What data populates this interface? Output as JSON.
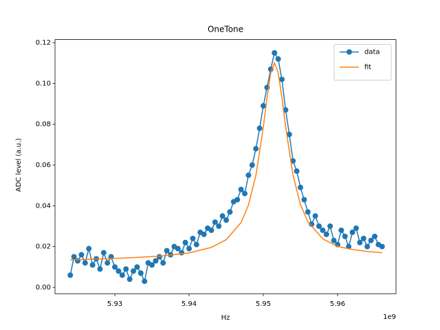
{
  "chart_data": {
    "type": "line",
    "title": "OneTone",
    "x_label": "Hz",
    "y_label": "ADC level (a.u.)",
    "x_offset_text": "1e9",
    "xlim": [
      5921940000,
      5967870000
    ],
    "ylim": [
      -0.0031,
      0.1215
    ],
    "xticks": [
      {
        "value": 5930000000,
        "label": "5.93"
      },
      {
        "value": 5940000000,
        "label": "5.94"
      },
      {
        "value": 5950000000,
        "label": "5.95"
      },
      {
        "value": 5960000000,
        "label": "5.96"
      }
    ],
    "yticks": [
      {
        "value": 0,
        "label": "0.00"
      },
      0.02,
      0.04,
      0.06,
      0.08,
      {
        "value": 0.1,
        "label": "0.10"
      },
      0.12
    ],
    "legend_loc": "upper right",
    "series": [
      {
        "name": "data",
        "color": "#1f77b4",
        "marker": "o",
        "x": [
          5924000000,
          5924500000,
          5925000000,
          5925500000,
          5926000000,
          5926500000,
          5927000000,
          5927500000,
          5928000000,
          5928500000,
          5929000000,
          5929500000,
          5930000000,
          5930500000,
          5931000000,
          5931500000,
          5932000000,
          5932500000,
          5933000000,
          5933500000,
          5934000000,
          5934500000,
          5935000000,
          5935500000,
          5936000000,
          5936500000,
          5937000000,
          5937500000,
          5938000000,
          5938500000,
          5939000000,
          5939500000,
          5940000000,
          5940500000,
          5941000000,
          5941500000,
          5942000000,
          5942500000,
          5943000000,
          5943500000,
          5944000000,
          5944500000,
          5945000000,
          5945500000,
          5946000000,
          5946500000,
          5947000000,
          5947500000,
          5948000000,
          5948500000,
          5949000000,
          5949500000,
          5950000000,
          5950500000,
          5951000000,
          5951500000,
          5952000000,
          5952500000,
          5953000000,
          5953500000,
          5954000000,
          5954500000,
          5955000000,
          5955500000,
          5956000000,
          5956500000,
          5957000000,
          5957500000,
          5958000000,
          5958500000,
          5959000000,
          5959500000,
          5960000000,
          5960500000,
          5961000000,
          5961500000,
          5962000000,
          5962500000,
          5963000000,
          5963500000,
          5964000000,
          5964500000,
          5965000000,
          5965500000,
          5966000000
        ],
        "values": [
          0.006,
          0.015,
          0.013,
          0.016,
          0.012,
          0.019,
          0.011,
          0.014,
          0.009,
          0.017,
          0.012,
          0.015,
          0.01,
          0.008,
          0.006,
          0.009,
          0.004,
          0.008,
          0.01,
          0.007,
          0.003,
          0.012,
          0.011,
          0.013,
          0.015,
          0.012,
          0.018,
          0.016,
          0.02,
          0.019,
          0.017,
          0.022,
          0.019,
          0.024,
          0.021,
          0.027,
          0.026,
          0.029,
          0.028,
          0.032,
          0.03,
          0.035,
          0.033,
          0.037,
          0.042,
          0.043,
          0.048,
          0.046,
          0.055,
          0.06,
          0.068,
          0.078,
          0.089,
          0.098,
          0.107,
          0.115,
          0.112,
          0.102,
          0.087,
          0.075,
          0.062,
          0.057,
          0.049,
          0.043,
          0.037,
          0.031,
          0.035,
          0.03,
          0.028,
          0.026,
          0.03,
          0.023,
          0.021,
          0.028,
          0.025,
          0.02,
          0.027,
          0.029,
          0.022,
          0.024,
          0.02,
          0.023,
          0.025,
          0.021,
          0.02
        ]
      },
      {
        "name": "fit",
        "color": "#ff7f0e",
        "x": [
          5924000000,
          5928000000,
          5932000000,
          5936000000,
          5940000000,
          5943000000,
          5945000000,
          5947000000,
          5948000000,
          5949000000,
          5950000000,
          5950500000,
          5951000000,
          5951500000,
          5952000000,
          5952500000,
          5953000000,
          5954000000,
          5955000000,
          5956000000,
          5958000000,
          5960000000,
          5962000000,
          5964000000,
          5966000000
        ],
        "values": [
          0.0135,
          0.0139,
          0.0145,
          0.0153,
          0.0169,
          0.0196,
          0.0234,
          0.0318,
          0.0404,
          0.0549,
          0.0787,
          0.0931,
          0.1052,
          0.1101,
          0.1053,
          0.0932,
          0.0788,
          0.055,
          0.0406,
          0.0322,
          0.0238,
          0.0201,
          0.0186,
          0.0176,
          0.017
        ]
      }
    ]
  }
}
